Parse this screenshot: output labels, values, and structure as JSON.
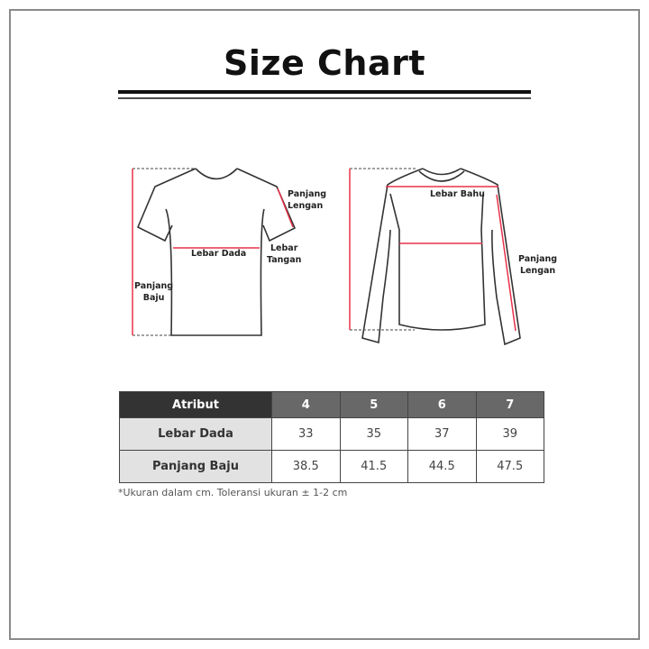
{
  "title": "Size Chart",
  "colors": {
    "measure_line": "#e8324a",
    "header_dark": "#333333",
    "header": "#686868",
    "row_label_bg": "#e2e2e2"
  },
  "tshirt": {
    "panjang_lengan": [
      "Panjang",
      "Lengan"
    ],
    "lebar_dada": "Lebar Dada",
    "lebar_tangan": [
      "Lebar",
      "Tangan"
    ],
    "panjang_baju": [
      "Panjang",
      "Baju"
    ]
  },
  "longsleeve": {
    "lebar_bahu": "Lebar Bahu",
    "panjang_lengan": [
      "Panjang",
      "Lengan"
    ]
  },
  "table": {
    "headers": [
      "Atribut",
      "4",
      "5",
      "6",
      "7"
    ],
    "rows": [
      {
        "label": "Lebar Dada",
        "values": [
          "33",
          "35",
          "37",
          "39"
        ]
      },
      {
        "label": "Panjang Baju",
        "values": [
          "38.5",
          "41.5",
          "44.5",
          "47.5"
        ]
      }
    ]
  },
  "note": "*Ukuran dalam cm. Toleransi ukuran ± 1-2 cm"
}
